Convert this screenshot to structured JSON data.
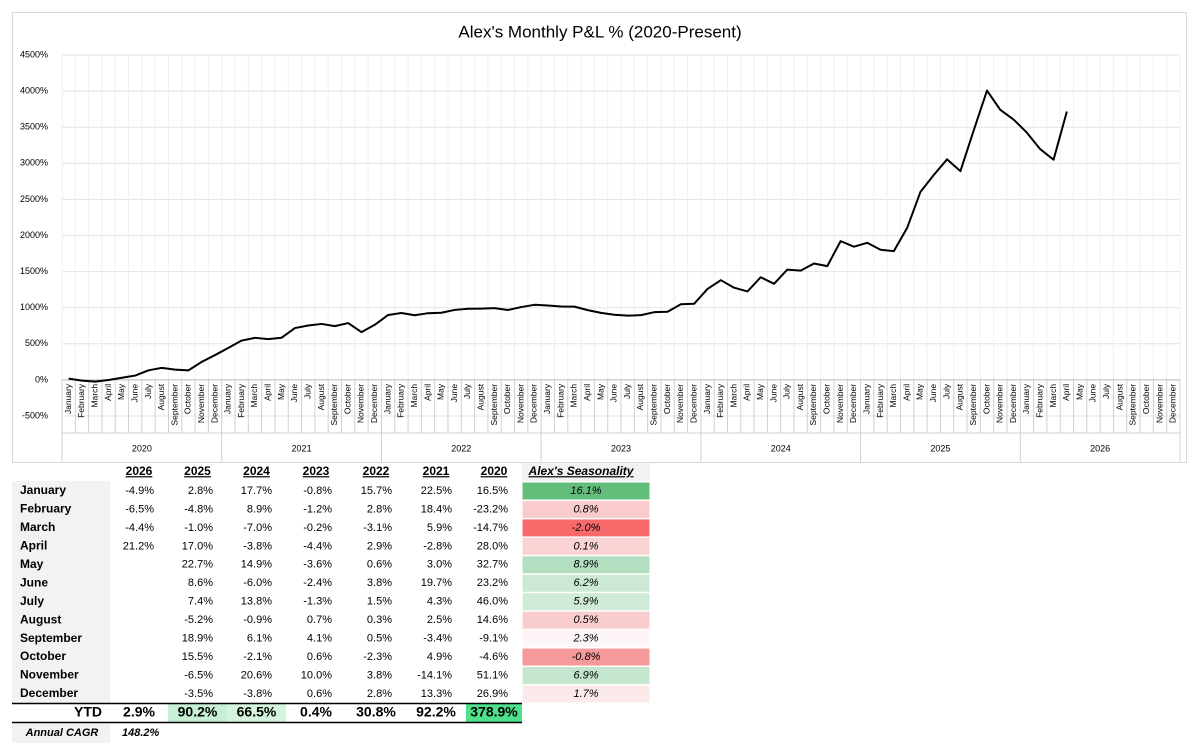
{
  "chart_data": {
    "type": "line",
    "title": "Alex's Monthly P&L % (2020-Present)",
    "categories": [
      "January",
      "February",
      "March",
      "April",
      "May",
      "June",
      "July",
      "August",
      "September",
      "October",
      "November",
      "December",
      "January",
      "February",
      "March",
      "April",
      "May",
      "June",
      "July",
      "August",
      "September",
      "October",
      "November",
      "December",
      "January",
      "February",
      "March",
      "April",
      "May",
      "June",
      "July",
      "August",
      "September",
      "October",
      "November",
      "December",
      "January",
      "February",
      "March",
      "April",
      "May",
      "June",
      "July",
      "August",
      "September",
      "October",
      "November",
      "December",
      "January",
      "February",
      "March",
      "April",
      "May",
      "June",
      "July",
      "August",
      "September",
      "October",
      "November",
      "December",
      "January",
      "February",
      "March",
      "April",
      "May",
      "June",
      "July",
      "August",
      "September",
      "October",
      "November",
      "December",
      "January",
      "February",
      "March",
      "April",
      "May",
      "June",
      "July",
      "August",
      "September",
      "October",
      "November",
      "December"
    ],
    "x_groups": [
      "2020",
      "2021",
      "2022",
      "2023",
      "2024",
      "2025",
      "2026"
    ],
    "values": [
      17,
      -10,
      -24,
      -2,
      30,
      60,
      133,
      167,
      143,
      132,
      250,
      344,
      444,
      545,
      583,
      564,
      584,
      718,
      754,
      775,
      745,
      787,
      662,
      763,
      899,
      927,
      895,
      924,
      930,
      969,
      985,
      988,
      994,
      968,
      1009,
      1040,
      1031,
      1017,
      1015,
      966,
      928,
      903,
      890,
      897,
      938,
      944,
      1048,
      1055,
      1260,
      1381,
      1277,
      1225,
      1422,
      1331,
      1528,
      1514,
      1612,
      1576,
      1922,
      1845,
      1899,
      1803,
      1784,
      2105,
      2605,
      2838,
      3055,
      2891,
      3456,
      4007,
      3740,
      3606,
      3424,
      3195,
      3050,
      3718,
      null,
      null,
      null,
      null,
      null,
      null,
      null,
      null
    ],
    "color": "#000000",
    "ylim": [
      -500,
      4500
    ],
    "yticks": [
      {
        "value": -500,
        "label": "-500%"
      },
      {
        "value": 0,
        "label": "0%"
      },
      {
        "value": 500,
        "label": "500%"
      },
      {
        "value": 1000,
        "label": "1000%"
      },
      {
        "value": 1500,
        "label": "1500%"
      },
      {
        "value": 2000,
        "label": "2000%"
      },
      {
        "value": 2500,
        "label": "2500%"
      },
      {
        "value": 3000,
        "label": "3000%"
      },
      {
        "value": 3500,
        "label": "3500%"
      },
      {
        "value": 4000,
        "label": "4000%"
      },
      {
        "value": 4500,
        "label": "4500%"
      }
    ],
    "grid": true
  },
  "table": {
    "header": [
      "2026",
      "2025",
      "2024",
      "2023",
      "2022",
      "2021",
      "2020"
    ],
    "seasonality_header": "Alex's Seasonality",
    "rows": [
      {
        "label": "January",
        "cells": [
          "-4.9%",
          "2.8%",
          "17.7%",
          "-0.8%",
          "15.7%",
          "22.5%",
          "16.5%"
        ],
        "seasonality": "16.1%",
        "color": "#63be7b"
      },
      {
        "label": "February",
        "cells": [
          "-6.5%",
          "-4.8%",
          "8.9%",
          "-1.2%",
          "2.8%",
          "18.4%",
          "-23.2%"
        ],
        "seasonality": "0.8%",
        "color": "#f9cbcc"
      },
      {
        "label": "March",
        "cells": [
          "-4.4%",
          "-1.0%",
          "-7.0%",
          "-0.2%",
          "-3.1%",
          "5.9%",
          "-14.7%"
        ],
        "seasonality": "-2.0%",
        "color": "#f8696b"
      },
      {
        "label": "April",
        "cells": [
          "21.2%",
          "17.0%",
          "-3.8%",
          "-4.4%",
          "2.9%",
          "-2.8%",
          "28.0%"
        ],
        "seasonality": "0.1%",
        "color": "#fad3d4"
      },
      {
        "label": "May",
        "cells": [
          null,
          "22.7%",
          "14.9%",
          "-3.6%",
          "0.6%",
          "3.0%",
          "32.7%"
        ],
        "seasonality": "8.9%",
        "color": "#b2dfc0"
      },
      {
        "label": "June",
        "cells": [
          null,
          "8.6%",
          "-6.0%",
          "-2.4%",
          "3.8%",
          "19.7%",
          "23.2%"
        ],
        "seasonality": "6.2%",
        "color": "#cbe9d4"
      },
      {
        "label": "July",
        "cells": [
          null,
          "7.4%",
          "13.8%",
          "-1.3%",
          "1.5%",
          "4.3%",
          "46.0%"
        ],
        "seasonality": "5.9%",
        "color": "#cfebd8"
      },
      {
        "label": "August",
        "cells": [
          null,
          "-5.2%",
          "-0.9%",
          "0.7%",
          "0.3%",
          "2.5%",
          "14.6%"
        ],
        "seasonality": "0.5%",
        "color": "#f9cdce"
      },
      {
        "label": "September",
        "cells": [
          null,
          "18.9%",
          "6.1%",
          "4.1%",
          "0.5%",
          "-3.4%",
          "-9.1%"
        ],
        "seasonality": "2.3%",
        "color": "#fdf5f6"
      },
      {
        "label": "October",
        "cells": [
          null,
          "15.5%",
          "-2.1%",
          "0.6%",
          "-2.3%",
          "4.9%",
          "-4.6%"
        ],
        "seasonality": "-0.8%",
        "color": "#f6999b"
      },
      {
        "label": "November",
        "cells": [
          null,
          "-6.5%",
          "20.6%",
          "10.0%",
          "3.8%",
          "-14.1%",
          "51.1%"
        ],
        "seasonality": "6.9%",
        "color": "#c4e6ce"
      },
      {
        "label": "December",
        "cells": [
          null,
          "-3.5%",
          "-3.8%",
          "0.6%",
          "2.8%",
          "13.3%",
          "26.9%"
        ],
        "seasonality": "1.7%",
        "color": "#fce9ea"
      }
    ],
    "ytd": {
      "label": "YTD",
      "cells": [
        "2.9%",
        "90.2%",
        "66.5%",
        "0.4%",
        "30.8%",
        "92.2%",
        "378.9%"
      ],
      "colors": [
        null,
        "#c6efd4",
        "#d4f4de",
        null,
        null,
        null,
        "#4ee08a"
      ]
    },
    "cagr": {
      "label": "Annual CAGR",
      "value": "148.2%"
    }
  }
}
